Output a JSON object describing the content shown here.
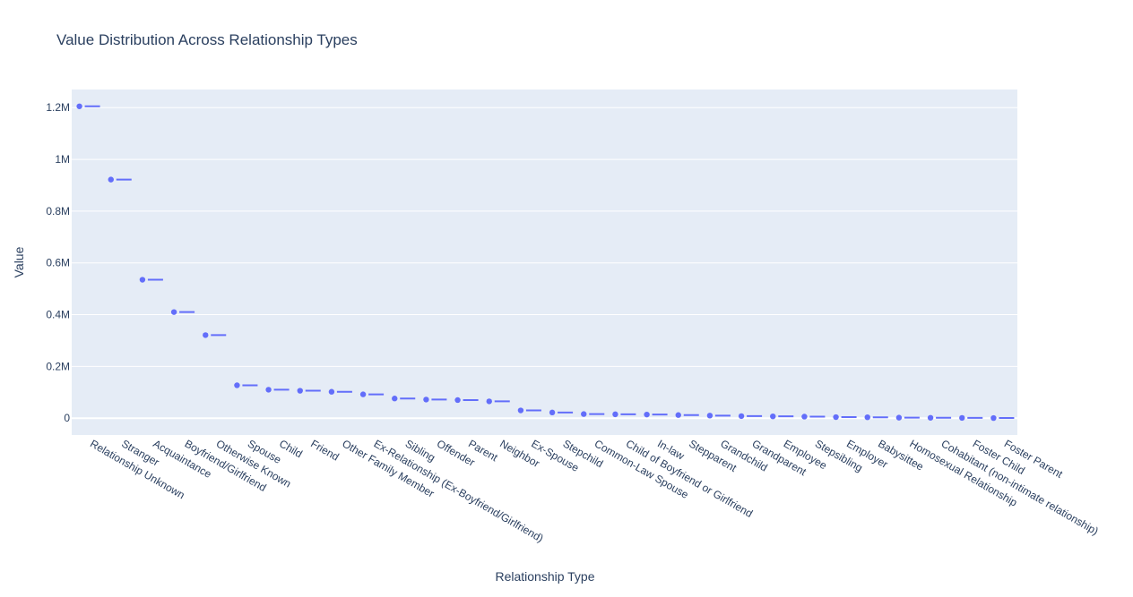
{
  "chart_data": {
    "type": "scatter",
    "title": "Value Distribution Across Relationship Types",
    "xlabel": "Relationship Type",
    "ylabel": "Value",
    "ylim": [
      -65000,
      1270000
    ],
    "yticks": [
      0,
      200000,
      400000,
      600000,
      800000,
      1000000,
      1200000
    ],
    "ytick_labels": [
      "0",
      "0.2M",
      "0.4M",
      "0.6M",
      "0.8M",
      "1M",
      "1.2M"
    ],
    "grid": true,
    "legend": "none",
    "marker_color": "#636efa",
    "plot_bg": "#e5ecf6",
    "categories": [
      "Relationship Unknown",
      "Stranger",
      "Acquaintance",
      "Boyfriend/Girlfriend",
      "Otherwise Known",
      "Spouse",
      "Child",
      "Friend",
      "Other Family Member",
      "Ex-Relationship (Ex-Boyfriend/Girlfriend)",
      "Sibling",
      "Offender",
      "Parent",
      "Neighbor",
      "Ex-Spouse",
      "Stepchild",
      "Common-Law Spouse",
      "Child of Boyfriend or Girlfriend",
      "In-law",
      "Stepparent",
      "Grandchild",
      "Grandparent",
      "Employee",
      "Stepsibling",
      "Employer",
      "Babysittee",
      "Homosexual Relationship",
      "Cohabitant (non-intimate relationship)",
      "Foster Child",
      "Foster Parent"
    ],
    "values": [
      1205000,
      922000,
      535000,
      410000,
      321000,
      127000,
      110000,
      106000,
      102000,
      92000,
      76000,
      72000,
      70000,
      65000,
      30000,
      22000,
      16000,
      15000,
      14000,
      12000,
      10000,
      8000,
      7000,
      6000,
      4000,
      3500,
      2000,
      1500,
      1000,
      500
    ]
  }
}
